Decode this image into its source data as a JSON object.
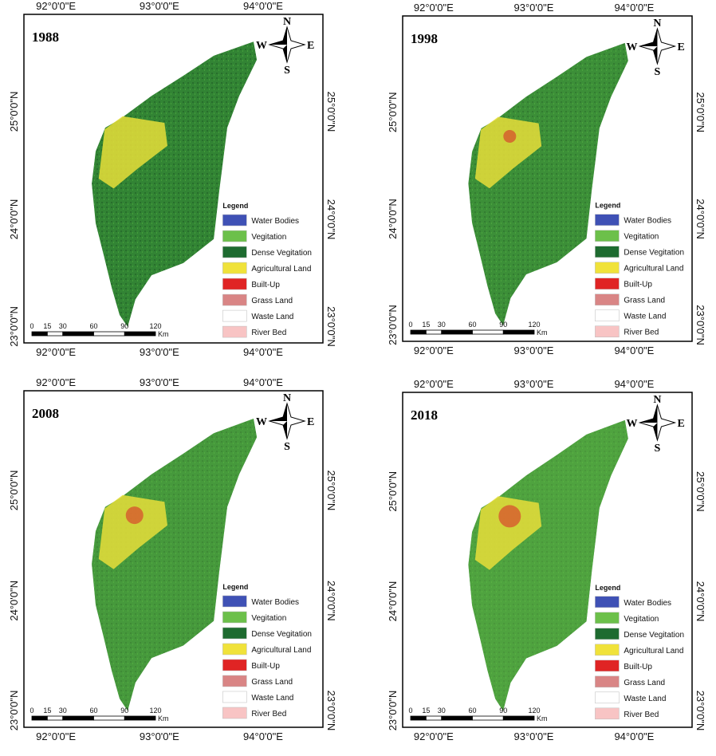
{
  "panels": [
    {
      "year": "1988"
    },
    {
      "year": "1998"
    },
    {
      "year": "2008"
    },
    {
      "year": "2018"
    }
  ],
  "x_ticks": [
    "92°0'0\"E",
    "93°0'0\"E",
    "94°0'0\"E"
  ],
  "y_ticks": [
    "25°0'0\"N",
    "24°0'0\"N",
    "23°0'0\"N"
  ],
  "compass": {
    "n": "N",
    "e": "E",
    "s": "S",
    "w": "W"
  },
  "legend": {
    "title": "Legend",
    "items": [
      {
        "label": "Water Bodies",
        "color": "#3f51b5"
      },
      {
        "label": "Vegitation",
        "color": "#6cc04a"
      },
      {
        "label": "Dense Vegitation",
        "color": "#1e6b30"
      },
      {
        "label": "Agricultural Land",
        "color": "#f0e23a"
      },
      {
        "label": "Built-Up",
        "color": "#e02424"
      },
      {
        "label": "Grass Land",
        "color": "#d98585"
      },
      {
        "label": "Waste Land",
        "color": "#ffffff"
      },
      {
        "label": "River Bed",
        "color": "#f8c4c4"
      }
    ]
  },
  "scale": {
    "ticks": [
      "0",
      "15",
      "30",
      "60",
      "90",
      "120"
    ],
    "unit": "Km"
  }
}
